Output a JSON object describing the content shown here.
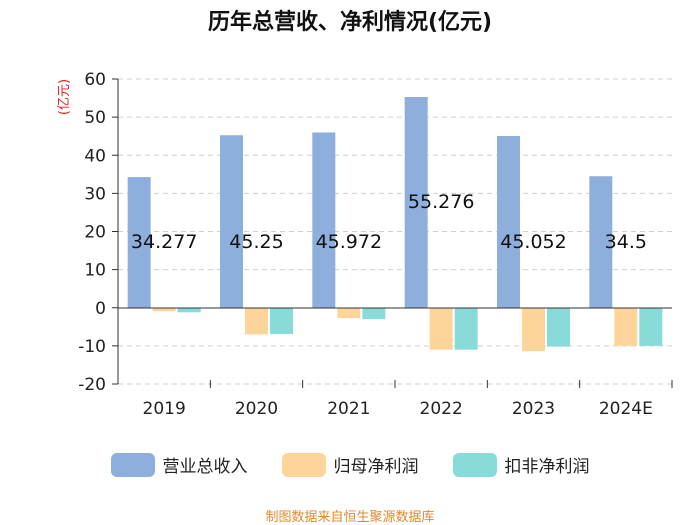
{
  "chart_data": {
    "type": "bar",
    "title": "历年总营收、净利情况(亿元)",
    "ylabel": "(亿元)",
    "xlabel": "",
    "ylim": [
      -20,
      60
    ],
    "yticks": [
      60,
      50,
      40,
      30,
      20,
      10,
      0,
      -10,
      -20
    ],
    "categories": [
      "2019",
      "2020",
      "2021",
      "2022",
      "2023",
      "2024E"
    ],
    "series": [
      {
        "name": "营业总收入",
        "color": "#8eaedc",
        "values": [
          34.277,
          45.25,
          45.972,
          55.276,
          45.052,
          34.5
        ],
        "labels": [
          "34.277",
          "45.25",
          "45.972",
          "55.276",
          "45.052",
          "34.5"
        ]
      },
      {
        "name": "归母净利润",
        "color": "#fdd59b",
        "values": [
          -0.9,
          -7.0,
          -2.7,
          -11.0,
          -11.4,
          -10.0
        ]
      },
      {
        "name": "扣非净利润",
        "color": "#89dbd9",
        "values": [
          -1.2,
          -6.9,
          -3.0,
          -11.0,
          -10.2,
          -10.0
        ]
      }
    ],
    "grid": true,
    "legend": "bottom"
  },
  "source": "制图数据来自恒生聚源数据库"
}
